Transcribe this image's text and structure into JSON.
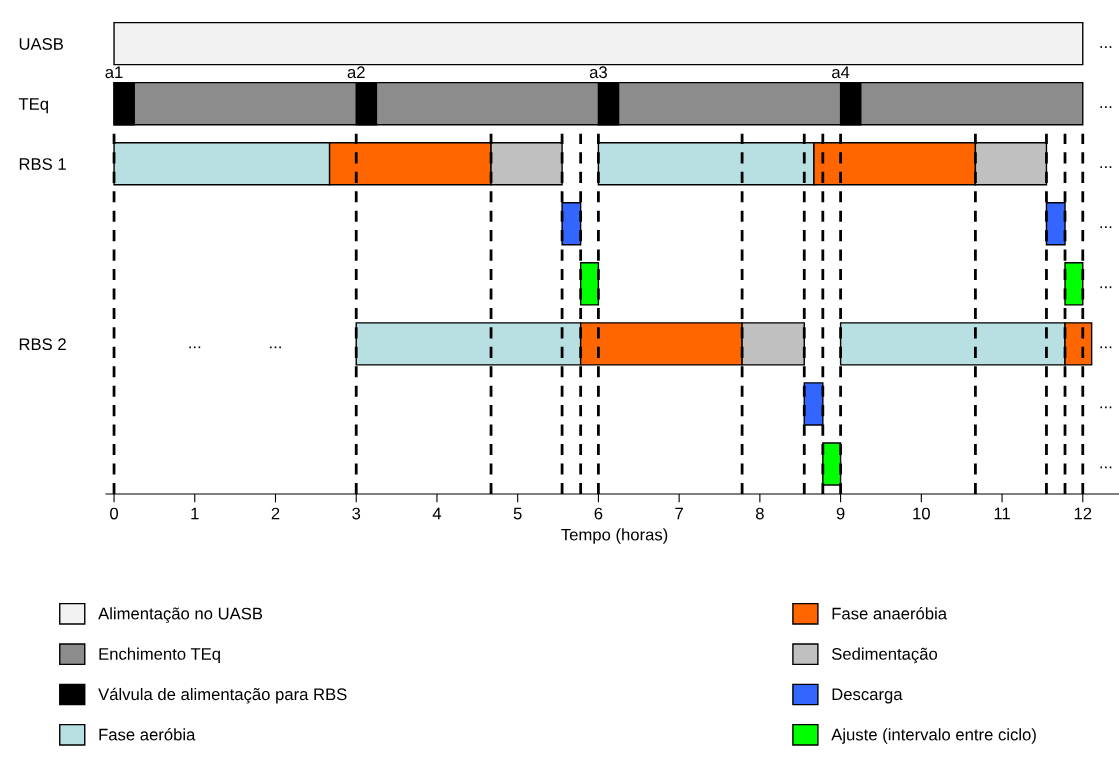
{
  "chart_data": {
    "type": "bar",
    "orientation": "horizontal",
    "xlabel": "Tempo (horas)",
    "categories": [
      "UASB",
      "TEq",
      "RBS 1",
      null,
      null,
      "RBS 2",
      null,
      null
    ],
    "series": [
      {
        "name": "Alimentação no UASB",
        "color": "#f2f2f2",
        "values": [
          12,
          null,
          null,
          null,
          null,
          null,
          null,
          null
        ],
        "base": [
          0,
          null,
          null,
          null,
          null,
          null,
          null,
          null
        ]
      },
      {
        "name": "Enchimento TEq",
        "color": "#8c8c8c",
        "values": [
          null,
          12,
          null,
          null,
          null,
          null,
          null,
          null
        ],
        "base": [
          null,
          0,
          null,
          null,
          null,
          null,
          null,
          null
        ]
      },
      {
        "name": "Válvula de alimentação para RBS",
        "color": "#000000",
        "values": [
          null,
          0.25,
          null,
          null,
          null,
          null,
          null,
          null
        ],
        "base": [
          null,
          0,
          null,
          null,
          null,
          null,
          null,
          null
        ]
      },
      {
        "color": "#000000",
        "values": [
          null,
          0.25,
          null,
          null,
          null,
          null,
          null,
          null
        ],
        "base": [
          null,
          3,
          null,
          null,
          null,
          null,
          null,
          null
        ]
      },
      {
        "color": "#000000",
        "values": [
          null,
          0.25,
          null,
          null,
          null,
          null,
          null,
          null
        ],
        "base": [
          null,
          6,
          null,
          null,
          null,
          null,
          null,
          null
        ]
      },
      {
        "color": "#000000",
        "values": [
          null,
          0.25,
          null,
          null,
          null,
          null,
          null,
          null
        ],
        "base": [
          null,
          9,
          null,
          null,
          null,
          null,
          null,
          null
        ]
      },
      {
        "name": "Fase aeróbia",
        "color": "#b8dfe1",
        "values": [
          null,
          null,
          2.67,
          null,
          null,
          2.78,
          null,
          null
        ],
        "base": [
          null,
          null,
          0,
          null,
          null,
          3,
          null,
          null
        ]
      },
      {
        "color": "#b8dfe1",
        "values": [
          null,
          null,
          2.67,
          null,
          null,
          2.78,
          null,
          null
        ],
        "base": [
          null,
          null,
          6,
          null,
          null,
          9,
          null,
          null
        ]
      },
      {
        "name": "Fase anaeróbia",
        "color": "#ff6600",
        "values": [
          null,
          null,
          2,
          null,
          null,
          2,
          null,
          null
        ],
        "base": [
          null,
          null,
          2.67,
          null,
          null,
          5.78,
          null,
          null
        ]
      },
      {
        "color": "#ff6600",
        "values": [
          null,
          null,
          2,
          null,
          null,
          0.33,
          null,
          null
        ],
        "base": [
          null,
          null,
          8.67,
          null,
          null,
          11.78,
          null,
          null
        ]
      },
      {
        "name": "Sedimentação",
        "color": "#c0c0c0",
        "values": [
          null,
          null,
          0.88,
          null,
          null,
          0.77,
          null,
          null
        ],
        "base": [
          null,
          null,
          4.67,
          null,
          null,
          7.78,
          null,
          null
        ]
      },
      {
        "color": "#c0c0c0",
        "values": [
          null,
          null,
          0.88,
          null,
          null,
          null,
          null,
          null
        ],
        "base": [
          null,
          null,
          10.67,
          null,
          null,
          null,
          null,
          null
        ]
      },
      {
        "name": "Descarga",
        "color": "#3366ff",
        "values": [
          null,
          null,
          null,
          0.23,
          null,
          null,
          0.23,
          null
        ],
        "base": [
          null,
          null,
          null,
          5.55,
          null,
          null,
          8.55,
          null
        ]
      },
      {
        "color": "#3366ff",
        "values": [
          null,
          null,
          null,
          0.23,
          null,
          null,
          null,
          null
        ],
        "base": [
          null,
          null,
          null,
          11.55,
          null,
          null,
          null,
          null
        ]
      },
      {
        "name": "Ajuste (intervalo entre ciclo)",
        "color": "#00ff00",
        "values": [
          null,
          null,
          null,
          null,
          0.22,
          null,
          null,
          0.22
        ],
        "base": [
          null,
          null,
          null,
          null,
          5.78,
          null,
          null,
          8.78
        ]
      },
      {
        "color": "#00ff00",
        "values": [
          null,
          null,
          null,
          null,
          0.22,
          null,
          null,
          null
        ],
        "base": [
          null,
          null,
          null,
          null,
          11.78,
          null,
          null,
          null
        ]
      }
    ],
    "xlim": [
      -0.1,
      12.5
    ],
    "xticks": [
      0,
      1,
      2,
      3,
      4,
      5,
      6,
      7,
      8,
      9,
      10,
      11,
      12
    ],
    "ref_lines": [
      {
        "axis": "x",
        "value": 0,
        "line_style": "dashed",
        "color": "#000000"
      },
      {
        "axis": "x",
        "value": 3,
        "line_style": "dashed",
        "color": "#000000"
      },
      {
        "axis": "x",
        "value": 4.67,
        "line_style": "dashed",
        "color": "#000000"
      },
      {
        "axis": "x",
        "value": 5.55,
        "line_style": "dashed",
        "color": "#000000"
      },
      {
        "axis": "x",
        "value": 5.78,
        "line_style": "dashed",
        "color": "#000000"
      },
      {
        "axis": "x",
        "value": 6,
        "line_style": "dashed",
        "color": "#000000"
      },
      {
        "axis": "x",
        "value": 7.78,
        "line_style": "dashed",
        "color": "#000000"
      },
      {
        "axis": "x",
        "value": 8.55,
        "line_style": "dashed",
        "color": "#000000"
      },
      {
        "axis": "x",
        "value": 8.78,
        "line_style": "dashed",
        "color": "#000000"
      },
      {
        "axis": "x",
        "value": 9,
        "line_style": "dashed",
        "color": "#000000"
      },
      {
        "axis": "x",
        "value": 10.67,
        "line_style": "dashed",
        "color": "#000000"
      },
      {
        "axis": "x",
        "value": 11.55,
        "line_style": "dashed",
        "color": "#000000"
      },
      {
        "axis": "x",
        "value": 11.78,
        "line_style": "dashed",
        "color": "#000000"
      },
      {
        "axis": "x",
        "value": 12,
        "line_style": "dashed",
        "color": "#000000"
      }
    ],
    "annotations": [
      "...",
      "...",
      "...",
      "...",
      "...",
      "...",
      "...",
      "...",
      {
        "text": "a1",
        "x": 0,
        "y": "TEq"
      },
      {
        "text": "a2",
        "x": 3,
        "y": "TEq"
      },
      {
        "text": "a3",
        "x": 6,
        "y": "TEq"
      },
      {
        "text": "a4",
        "x": 9,
        "y": "TEq"
      },
      "...",
      "..."
    ],
    "legend": "bottom",
    "grid": false
  }
}
